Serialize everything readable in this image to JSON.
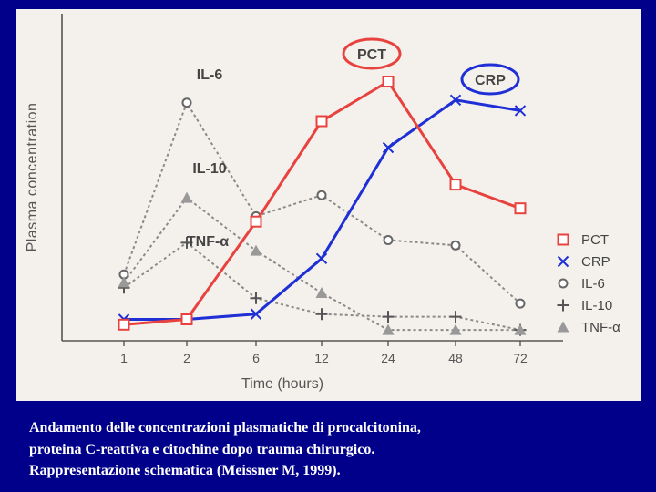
{
  "caption": {
    "line1": "Andamento delle concentrazioni plasmatiche di procalcitonina,",
    "line2": "proteina C-reattiva e citochine dopo trauma chirurgico.",
    "line3": "Rappresentazione schematica (Meissner M, 1999)."
  },
  "chart_data": {
    "type": "line",
    "title": "",
    "xlabel": "Time (hours)",
    "ylabel": "Plasma concentration",
    "categories": [
      "1",
      "2",
      "6",
      "12",
      "24",
      "48",
      "72"
    ],
    "ylim": [
      0,
      100
    ],
    "grid": false,
    "legend_position": "right",
    "series": [
      {
        "name": "PCT",
        "color": "#e8423f",
        "marker": "square",
        "style": "solid",
        "values": [
          3,
          5,
          42,
          80,
          95,
          56,
          47
        ]
      },
      {
        "name": "CRP",
        "color": "#1f2fd6",
        "marker": "x",
        "style": "solid",
        "values": [
          5,
          5,
          7,
          28,
          70,
          88,
          84
        ]
      },
      {
        "name": "IL-6",
        "color": "#8a8a8a",
        "marker": "circle",
        "style": "dotted",
        "values": [
          22,
          87,
          44,
          52,
          35,
          33,
          11
        ]
      },
      {
        "name": "IL-10",
        "color": "#8a8a8a",
        "marker": "plus",
        "style": "dotted",
        "values": [
          17,
          34,
          13,
          7,
          6,
          6,
          1
        ]
      },
      {
        "name": "TNF-α",
        "color": "#8a8a8a",
        "marker": "triangle",
        "style": "dotted",
        "values": [
          19,
          51,
          31,
          15,
          1,
          1,
          1
        ]
      }
    ],
    "annotations": [
      {
        "text": "PCT",
        "near": "PCT peak",
        "boxed": true
      },
      {
        "text": "CRP",
        "near": "CRP peak",
        "boxed": true
      },
      {
        "text": "IL-6",
        "near": "IL-6 peak",
        "boxed": false
      },
      {
        "text": "IL-10",
        "near": "IL-10 peak",
        "boxed": false
      },
      {
        "text": "TNF-α",
        "near": "TNF-α peak",
        "boxed": false
      }
    ],
    "legend_items": [
      "PCT",
      "CRP",
      "IL-6",
      "IL-10",
      "TNF-α"
    ]
  },
  "colors": {
    "background": "#00008a",
    "panel": "#f4f1ec",
    "axis": "#555555",
    "pct": "#e8423f",
    "crp": "#1f2fd6",
    "cytokines": "#8a8a8a"
  }
}
